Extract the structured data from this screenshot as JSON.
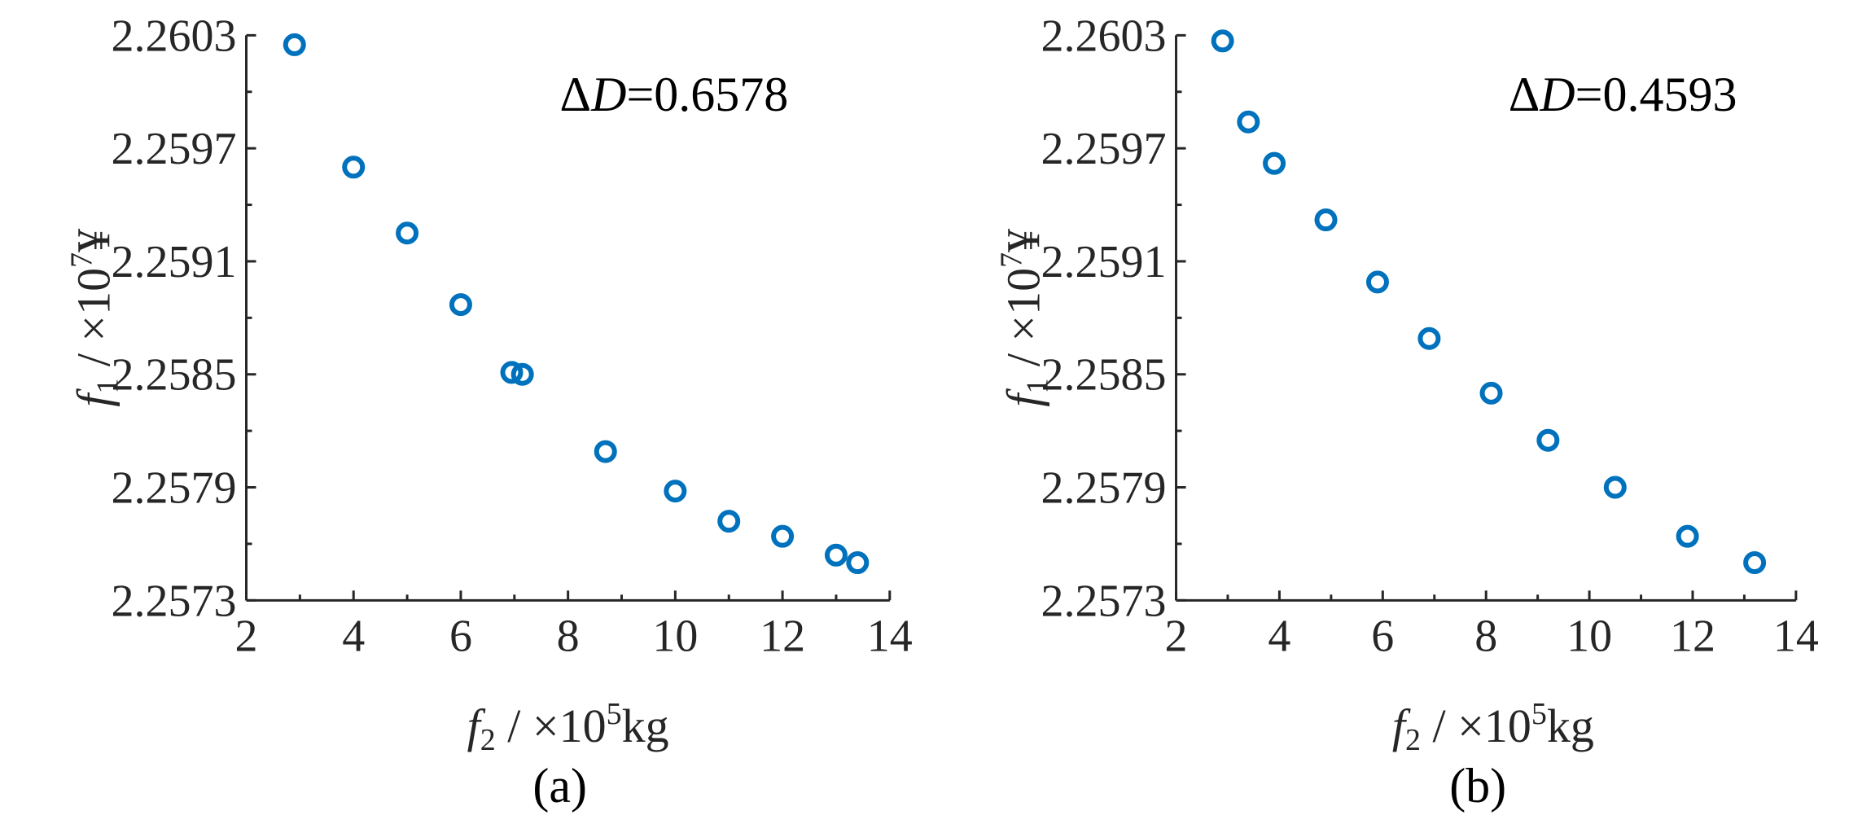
{
  "chart_data": [
    {
      "type": "scatter",
      "panel_label": "(a)",
      "annotation": {
        "delta_symbol": "Δ",
        "variable": "D",
        "value_text": "=0.6578"
      },
      "xlabel": {
        "var": "f",
        "sub": "2",
        "rest": " / ×10",
        "sup": "5",
        "unit": "kg"
      },
      "ylabel": {
        "var": "f",
        "sub": "1",
        "rest": " / ×10",
        "sup": "7",
        "unit": "¥"
      },
      "xlim": [
        2,
        14
      ],
      "ylim": [
        2.2573,
        2.2603
      ],
      "xticks": [
        2,
        4,
        6,
        8,
        10,
        12,
        14
      ],
      "yticks": [
        2.2573,
        2.2579,
        2.2585,
        2.2591,
        2.2597,
        2.2603
      ],
      "ytick_labels": [
        "2.2573",
        "2.2579",
        "2.2585",
        "2.2591",
        "2.2597",
        "2.2603"
      ],
      "grid": false,
      "marker": "circle-open",
      "marker_color": "#0072BD",
      "points": [
        {
          "x": 2.9,
          "y": 2.26025
        },
        {
          "x": 4.0,
          "y": 2.2596
        },
        {
          "x": 5.0,
          "y": 2.25925
        },
        {
          "x": 6.0,
          "y": 2.25887
        },
        {
          "x": 6.95,
          "y": 2.25851
        },
        {
          "x": 7.15,
          "y": 2.2585
        },
        {
          "x": 8.7,
          "y": 2.25809
        },
        {
          "x": 10.0,
          "y": 2.25788
        },
        {
          "x": 11.0,
          "y": 2.25772
        },
        {
          "x": 12.0,
          "y": 2.25764
        },
        {
          "x": 13.0,
          "y": 2.25754
        },
        {
          "x": 13.4,
          "y": 2.2575
        }
      ]
    },
    {
      "type": "scatter",
      "panel_label": "(b)",
      "annotation": {
        "delta_symbol": "Δ",
        "variable": "D",
        "value_text": "=0.4593"
      },
      "xlabel": {
        "var": "f",
        "sub": "2",
        "rest": " / ×10",
        "sup": "5",
        "unit": "kg"
      },
      "ylabel": {
        "var": "f",
        "sub": "1",
        "rest": " / ×10",
        "sup": "7",
        "unit": "¥"
      },
      "xlim": [
        2,
        14
      ],
      "ylim": [
        2.2573,
        2.2603
      ],
      "xticks": [
        2,
        4,
        6,
        8,
        10,
        12,
        14
      ],
      "yticks": [
        2.2573,
        2.2579,
        2.2585,
        2.2591,
        2.2597,
        2.2603
      ],
      "ytick_labels": [
        "2.2573",
        "2.2579",
        "2.2585",
        "2.2591",
        "2.2597",
        "2.2603"
      ],
      "grid": false,
      "marker": "circle-open",
      "marker_color": "#0072BD",
      "points": [
        {
          "x": 2.9,
          "y": 2.26027
        },
        {
          "x": 3.4,
          "y": 2.25984
        },
        {
          "x": 3.9,
          "y": 2.25962
        },
        {
          "x": 4.9,
          "y": 2.25932
        },
        {
          "x": 5.9,
          "y": 2.25899
        },
        {
          "x": 6.9,
          "y": 2.25869
        },
        {
          "x": 8.1,
          "y": 2.2584
        },
        {
          "x": 9.2,
          "y": 2.25815
        },
        {
          "x": 10.5,
          "y": 2.2579
        },
        {
          "x": 11.9,
          "y": 2.25764
        },
        {
          "x": 13.2,
          "y": 2.2575
        }
      ]
    }
  ]
}
